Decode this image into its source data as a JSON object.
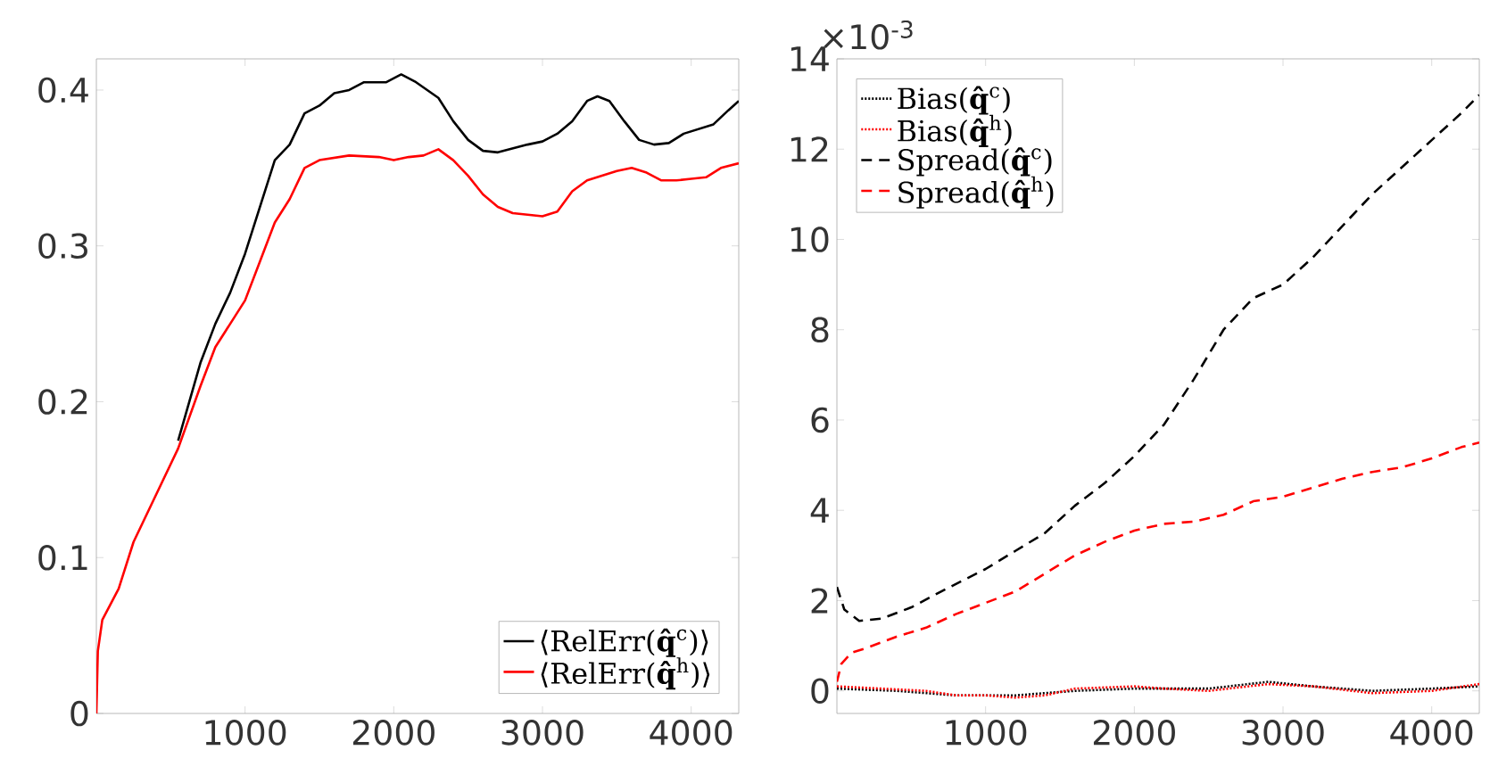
{
  "chart_data": [
    {
      "type": "line",
      "xlim": [
        0,
        4320
      ],
      "ylim": [
        0,
        0.42
      ],
      "xticks": [
        1000,
        2000,
        3000,
        4000
      ],
      "yticks": [
        0,
        0.1,
        0.2,
        0.3,
        0.4
      ],
      "legend": "bottom right",
      "line_style": "solid",
      "series": [
        {
          "name": "⟨RelErr(**q̂**$^{c}$)⟩",
          "color": "#000000",
          "x": [
            550,
            700,
            800,
            900,
            1000,
            1100,
            1200,
            1300,
            1400,
            1500,
            1600,
            1700,
            1800,
            1950,
            2050,
            2150,
            2300,
            2400,
            2500,
            2600,
            2700,
            2900,
            3000,
            3100,
            3200,
            3300,
            3370,
            3450,
            3550,
            3650,
            3750,
            3850,
            3950,
            4050,
            4150,
            4250,
            4320
          ],
          "values": [
            0.175,
            0.225,
            0.25,
            0.27,
            0.295,
            0.325,
            0.355,
            0.365,
            0.385,
            0.39,
            0.398,
            0.4,
            0.405,
            0.405,
            0.41,
            0.405,
            0.395,
            0.38,
            0.368,
            0.361,
            0.36,
            0.365,
            0.367,
            0.372,
            0.38,
            0.393,
            0.396,
            0.393,
            0.38,
            0.368,
            0.365,
            0.366,
            0.372,
            0.375,
            0.378,
            0.387,
            0.393
          ]
        },
        {
          "name": "⟨RelErr(**q̂**$^{h}$)⟩",
          "color": "#ff0000",
          "x": [
            0,
            10,
            40,
            150,
            250,
            400,
            550,
            700,
            800,
            900,
            1000,
            1100,
            1200,
            1300,
            1400,
            1500,
            1700,
            1900,
            2000,
            2100,
            2200,
            2300,
            2400,
            2500,
            2600,
            2700,
            2800,
            2900,
            3000,
            3100,
            3200,
            3300,
            3400,
            3500,
            3600,
            3700,
            3800,
            3900,
            4000,
            4100,
            4200,
            4320
          ],
          "values": [
            0,
            0.04,
            0.06,
            0.08,
            0.11,
            0.14,
            0.17,
            0.21,
            0.235,
            0.25,
            0.265,
            0.29,
            0.315,
            0.33,
            0.35,
            0.355,
            0.358,
            0.357,
            0.355,
            0.357,
            0.358,
            0.362,
            0.355,
            0.345,
            0.333,
            0.325,
            0.321,
            0.32,
            0.319,
            0.322,
            0.335,
            0.342,
            0.345,
            0.348,
            0.35,
            0.347,
            0.342,
            0.342,
            0.343,
            0.344,
            0.35,
            0.353
          ]
        }
      ]
    },
    {
      "type": "line",
      "xlim": [
        0,
        4320
      ],
      "ylim": [
        -0.5,
        14
      ],
      "xticks": [
        1000,
        2000,
        3000,
        4000
      ],
      "yticks": [
        0,
        2,
        4,
        6,
        8,
        10,
        12,
        14
      ],
      "legend": "top left",
      "annotations": [
        "×10$^{-3}$"
      ],
      "series": [
        {
          "name": "Bias(**q̂**$^{c}$)",
          "color": "#000000",
          "line_style": "dotted",
          "x": [
            0,
            400,
            800,
            1200,
            1600,
            2000,
            2500,
            2900,
            3200,
            3600,
            4000,
            4320
          ],
          "values": [
            0.05,
            0.0,
            -0.1,
            -0.1,
            0.0,
            0.05,
            0.05,
            0.2,
            0.1,
            0.0,
            0.05,
            0.1
          ]
        },
        {
          "name": "Bias(**q̂**$^{h}$)",
          "color": "#ff0000",
          "line_style": "dotted",
          "x": [
            0,
            300,
            600,
            800,
            1000,
            1200,
            1400,
            1600,
            2000,
            2200,
            2500,
            2900,
            3200,
            3600,
            4000,
            4320
          ],
          "values": [
            0.1,
            0.05,
            0.0,
            -0.1,
            -0.1,
            -0.15,
            -0.1,
            0.05,
            0.1,
            0.05,
            0.0,
            0.15,
            0.1,
            -0.05,
            0.0,
            0.15
          ]
        },
        {
          "name": "Spread(**q̂**$^{c}$)",
          "color": "#000000",
          "line_style": "dashed",
          "x": [
            0,
            50,
            150,
            300,
            500,
            700,
            1000,
            1200,
            1400,
            1600,
            1800,
            2000,
            2200,
            2400,
            2600,
            2800,
            3000,
            3200,
            3400,
            3600,
            3800,
            4000,
            4200,
            4320
          ],
          "values": [
            2.3,
            1.8,
            1.55,
            1.6,
            1.85,
            2.2,
            2.7,
            3.1,
            3.5,
            4.1,
            4.6,
            5.2,
            5.9,
            6.9,
            8.0,
            8.7,
            9.0,
            9.6,
            10.3,
            11.0,
            11.6,
            12.2,
            12.8,
            13.2
          ]
        },
        {
          "name": "Spread(**q̂**$^{h}$)",
          "color": "#ff0000",
          "line_style": "dashed",
          "x": [
            0,
            30,
            100,
            200,
            400,
            600,
            800,
            1000,
            1200,
            1400,
            1600,
            1800,
            2000,
            2200,
            2400,
            2600,
            2800,
            3000,
            3200,
            3400,
            3600,
            3800,
            4000,
            4200,
            4320
          ],
          "values": [
            0.2,
            0.6,
            0.85,
            0.95,
            1.2,
            1.4,
            1.7,
            1.95,
            2.2,
            2.6,
            3.0,
            3.3,
            3.55,
            3.7,
            3.75,
            3.9,
            4.2,
            4.3,
            4.5,
            4.7,
            4.85,
            4.95,
            5.15,
            5.4,
            5.5
          ]
        }
      ]
    }
  ]
}
